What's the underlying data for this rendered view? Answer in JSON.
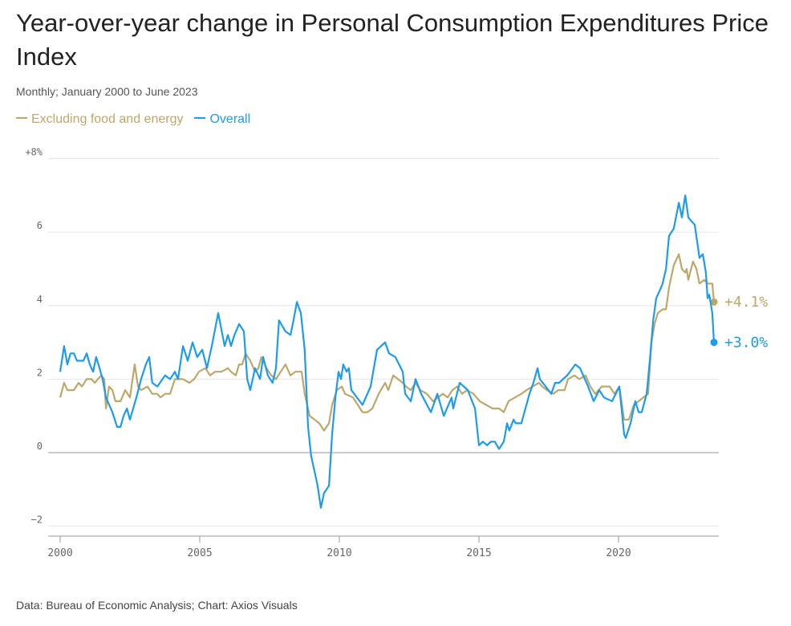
{
  "title": "Year-over-year change in Personal Consumption Expenditures Price Index",
  "subtitle": "Monthly; January 2000 to June 2023",
  "footer": "Data: Bureau of Economic Analysis; Chart: Axios Visuals",
  "colors": {
    "core": "#BBA86A",
    "overall": "#1E9BEA",
    "grid": "#e6e6e6",
    "zero": "#999999"
  },
  "chart_data": {
    "type": "line",
    "title": "Year-over-year change in Personal Consumption Expenditures Price Index",
    "xlabel": "",
    "ylabel": "",
    "xlim": [
      2000,
      2023.5
    ],
    "ylim": [
      -2,
      8
    ],
    "grid": true,
    "legend_placement": "top-left",
    "y_ticks": [
      {
        "v": 8,
        "label": "+8%"
      },
      {
        "v": 6,
        "label": "6"
      },
      {
        "v": 4,
        "label": "4"
      },
      {
        "v": 2,
        "label": "2"
      },
      {
        "v": 0,
        "label": "0"
      },
      {
        "v": -2,
        "label": "−2"
      }
    ],
    "x_ticks": [
      {
        "v": 2000,
        "label": "2000"
      },
      {
        "v": 2005,
        "label": "2005"
      },
      {
        "v": 2010,
        "label": "2010"
      },
      {
        "v": 2015,
        "label": "2015"
      },
      {
        "v": 2020,
        "label": "2020"
      }
    ],
    "series": [
      {
        "name": "Excluding food and energy",
        "key": "core",
        "end_label": "+4.1%",
        "points": [
          [
            2000.0,
            1.5
          ],
          [
            2000.14,
            1.9
          ],
          [
            2000.26,
            1.7
          ],
          [
            2000.49,
            1.7
          ],
          [
            2000.66,
            1.9
          ],
          [
            2000.78,
            1.8
          ],
          [
            2000.95,
            2.0
          ],
          [
            2001.12,
            2.0
          ],
          [
            2001.24,
            1.9
          ],
          [
            2001.35,
            2.0
          ],
          [
            2001.47,
            2.1
          ],
          [
            2001.58,
            2.0
          ],
          [
            2001.64,
            1.2
          ],
          [
            2001.75,
            1.8
          ],
          [
            2001.87,
            1.7
          ],
          [
            2001.98,
            1.4
          ],
          [
            2002.16,
            1.4
          ],
          [
            2002.33,
            1.7
          ],
          [
            2002.5,
            1.5
          ],
          [
            2002.67,
            2.4
          ],
          [
            2002.79,
            1.8
          ],
          [
            2002.9,
            1.7
          ],
          [
            2003.13,
            1.8
          ],
          [
            2003.3,
            1.6
          ],
          [
            2003.48,
            1.6
          ],
          [
            2003.59,
            1.5
          ],
          [
            2003.76,
            1.6
          ],
          [
            2003.94,
            1.6
          ],
          [
            2004.11,
            2.0
          ],
          [
            2004.4,
            2.0
          ],
          [
            2004.63,
            1.9
          ],
          [
            2004.8,
            2.0
          ],
          [
            2004.97,
            2.2
          ],
          [
            2005.2,
            2.3
          ],
          [
            2005.37,
            2.1
          ],
          [
            2005.55,
            2.2
          ],
          [
            2005.78,
            2.2
          ],
          [
            2006.01,
            2.3
          ],
          [
            2006.12,
            2.2
          ],
          [
            2006.29,
            2.1
          ],
          [
            2006.41,
            2.4
          ],
          [
            2006.52,
            2.4
          ],
          [
            2006.64,
            2.7
          ],
          [
            2006.81,
            2.5
          ],
          [
            2006.98,
            2.2
          ],
          [
            2007.1,
            2.3
          ],
          [
            2007.21,
            2.6
          ],
          [
            2007.39,
            2.3
          ],
          [
            2007.56,
            2.1
          ],
          [
            2007.73,
            2.0
          ],
          [
            2007.9,
            2.2
          ],
          [
            2008.07,
            2.4
          ],
          [
            2008.25,
            2.1
          ],
          [
            2008.42,
            2.2
          ],
          [
            2008.65,
            2.2
          ],
          [
            2008.76,
            1.6
          ],
          [
            2008.94,
            1.0
          ],
          [
            2009.11,
            0.9
          ],
          [
            2009.28,
            0.8
          ],
          [
            2009.45,
            0.6
          ],
          [
            2009.63,
            0.8
          ],
          [
            2009.74,
            1.3
          ],
          [
            2009.91,
            1.7
          ],
          [
            2010.09,
            1.8
          ],
          [
            2010.2,
            1.6
          ],
          [
            2010.49,
            1.5
          ],
          [
            2010.66,
            1.3
          ],
          [
            2010.83,
            1.1
          ],
          [
            2011.01,
            1.1
          ],
          [
            2011.18,
            1.2
          ],
          [
            2011.41,
            1.6
          ],
          [
            2011.64,
            1.9
          ],
          [
            2011.75,
            1.7
          ],
          [
            2011.93,
            2.1
          ],
          [
            2012.1,
            2.0
          ],
          [
            2012.27,
            1.9
          ],
          [
            2012.39,
            1.8
          ],
          [
            2012.56,
            1.7
          ],
          [
            2012.73,
            1.9
          ],
          [
            2012.9,
            1.7
          ],
          [
            2013.13,
            1.6
          ],
          [
            2013.36,
            1.4
          ],
          [
            2013.53,
            1.5
          ],
          [
            2013.71,
            1.6
          ],
          [
            2013.88,
            1.5
          ],
          [
            2014.05,
            1.7
          ],
          [
            2014.22,
            1.8
          ],
          [
            2014.4,
            1.6
          ],
          [
            2014.57,
            1.7
          ],
          [
            2014.8,
            1.6
          ],
          [
            2015.03,
            1.4
          ],
          [
            2015.26,
            1.3
          ],
          [
            2015.49,
            1.2
          ],
          [
            2015.72,
            1.2
          ],
          [
            2015.89,
            1.1
          ],
          [
            2016.06,
            1.4
          ],
          [
            2016.29,
            1.5
          ],
          [
            2016.52,
            1.6
          ],
          [
            2016.7,
            1.7
          ],
          [
            2016.92,
            1.8
          ],
          [
            2017.15,
            1.9
          ],
          [
            2017.27,
            1.8
          ],
          [
            2017.44,
            1.7
          ],
          [
            2017.67,
            1.6
          ],
          [
            2017.84,
            1.7
          ],
          [
            2018.07,
            1.7
          ],
          [
            2018.19,
            2.0
          ],
          [
            2018.42,
            2.1
          ],
          [
            2018.59,
            2.0
          ],
          [
            2018.82,
            2.1
          ],
          [
            2018.99,
            1.8
          ],
          [
            2019.17,
            1.6
          ],
          [
            2019.4,
            1.8
          ],
          [
            2019.68,
            1.8
          ],
          [
            2019.86,
            1.6
          ],
          [
            2020.03,
            1.8
          ],
          [
            2020.2,
            0.9
          ],
          [
            2020.37,
            0.9
          ],
          [
            2020.55,
            1.3
          ],
          [
            2020.72,
            1.4
          ],
          [
            2020.89,
            1.5
          ],
          [
            2021.06,
            1.6
          ],
          [
            2021.18,
            3.0
          ],
          [
            2021.29,
            3.5
          ],
          [
            2021.41,
            3.8
          ],
          [
            2021.58,
            3.9
          ],
          [
            2021.7,
            3.9
          ],
          [
            2021.81,
            4.5
          ],
          [
            2021.98,
            5.1
          ],
          [
            2022.16,
            5.4
          ],
          [
            2022.27,
            5.0
          ],
          [
            2022.39,
            4.9
          ],
          [
            2022.44,
            5.0
          ],
          [
            2022.5,
            4.7
          ],
          [
            2022.67,
            5.2
          ],
          [
            2022.79,
            5.0
          ],
          [
            2022.9,
            4.6
          ],
          [
            2023.07,
            4.7
          ],
          [
            2023.19,
            4.6
          ],
          [
            2023.36,
            4.6
          ],
          [
            2023.42,
            4.1
          ]
        ]
      },
      {
        "name": "Overall",
        "key": "overall",
        "end_label": "+3.0%",
        "points": [
          [
            2000.0,
            2.2
          ],
          [
            2000.14,
            2.9
          ],
          [
            2000.26,
            2.4
          ],
          [
            2000.37,
            2.7
          ],
          [
            2000.49,
            2.7
          ],
          [
            2000.6,
            2.5
          ],
          [
            2000.83,
            2.5
          ],
          [
            2000.95,
            2.7
          ],
          [
            2001.06,
            2.4
          ],
          [
            2001.18,
            2.2
          ],
          [
            2001.29,
            2.6
          ],
          [
            2001.41,
            2.3
          ],
          [
            2001.52,
            2.0
          ],
          [
            2001.64,
            1.5
          ],
          [
            2001.87,
            1.1
          ],
          [
            2002.04,
            0.7
          ],
          [
            2002.16,
            0.7
          ],
          [
            2002.27,
            1.0
          ],
          [
            2002.39,
            1.2
          ],
          [
            2002.5,
            0.9
          ],
          [
            2002.73,
            1.5
          ],
          [
            2002.9,
            2.0
          ],
          [
            2003.07,
            2.4
          ],
          [
            2003.19,
            2.6
          ],
          [
            2003.3,
            1.9
          ],
          [
            2003.48,
            1.8
          ],
          [
            2003.76,
            2.1
          ],
          [
            2003.94,
            2.0
          ],
          [
            2004.11,
            2.2
          ],
          [
            2004.22,
            2.0
          ],
          [
            2004.4,
            2.9
          ],
          [
            2004.57,
            2.5
          ],
          [
            2004.74,
            3.0
          ],
          [
            2004.91,
            2.6
          ],
          [
            2005.09,
            2.8
          ],
          [
            2005.26,
            2.3
          ],
          [
            2005.43,
            2.9
          ],
          [
            2005.66,
            3.8
          ],
          [
            2005.89,
            2.9
          ],
          [
            2006.01,
            3.2
          ],
          [
            2006.12,
            2.9
          ],
          [
            2006.24,
            3.2
          ],
          [
            2006.41,
            3.5
          ],
          [
            2006.58,
            3.3
          ],
          [
            2006.7,
            2.0
          ],
          [
            2006.81,
            1.7
          ],
          [
            2006.98,
            2.3
          ],
          [
            2007.16,
            2.0
          ],
          [
            2007.27,
            2.6
          ],
          [
            2007.44,
            2.1
          ],
          [
            2007.61,
            1.9
          ],
          [
            2007.73,
            2.3
          ],
          [
            2007.84,
            3.6
          ],
          [
            2008.07,
            3.3
          ],
          [
            2008.25,
            3.2
          ],
          [
            2008.36,
            3.6
          ],
          [
            2008.48,
            4.1
          ],
          [
            2008.62,
            3.8
          ],
          [
            2008.76,
            2.8
          ],
          [
            2008.88,
            0.7
          ],
          [
            2008.99,
            -0.1
          ],
          [
            2009.11,
            -0.5
          ],
          [
            2009.22,
            -0.9
          ],
          [
            2009.34,
            -1.5
          ],
          [
            2009.45,
            -1.1
          ],
          [
            2009.63,
            -0.9
          ],
          [
            2009.74,
            0.5
          ],
          [
            2009.86,
            1.5
          ],
          [
            2009.97,
            2.2
          ],
          [
            2010.06,
            2.0
          ],
          [
            2010.14,
            2.4
          ],
          [
            2010.26,
            2.2
          ],
          [
            2010.34,
            2.3
          ],
          [
            2010.43,
            1.7
          ],
          [
            2010.83,
            1.3
          ],
          [
            2011.12,
            1.8
          ],
          [
            2011.35,
            2.8
          ],
          [
            2011.64,
            3.0
          ],
          [
            2011.78,
            2.7
          ],
          [
            2012.01,
            2.6
          ],
          [
            2012.27,
            2.2
          ],
          [
            2012.36,
            1.6
          ],
          [
            2012.56,
            1.4
          ],
          [
            2012.73,
            2.0
          ],
          [
            2012.93,
            1.6
          ],
          [
            2013.28,
            1.1
          ],
          [
            2013.51,
            1.6
          ],
          [
            2013.74,
            1.0
          ],
          [
            2014.02,
            1.5
          ],
          [
            2014.08,
            1.2
          ],
          [
            2014.31,
            1.9
          ],
          [
            2014.6,
            1.7
          ],
          [
            2014.86,
            1.2
          ],
          [
            2015.0,
            0.2
          ],
          [
            2015.14,
            0.3
          ],
          [
            2015.29,
            0.2
          ],
          [
            2015.43,
            0.3
          ],
          [
            2015.57,
            0.3
          ],
          [
            2015.72,
            0.1
          ],
          [
            2015.89,
            0.3
          ],
          [
            2016.01,
            0.8
          ],
          [
            2016.09,
            0.6
          ],
          [
            2016.24,
            0.9
          ],
          [
            2016.32,
            0.8
          ],
          [
            2016.52,
            0.8
          ],
          [
            2016.81,
            1.6
          ],
          [
            2016.95,
            1.9
          ],
          [
            2017.1,
            2.3
          ],
          [
            2017.18,
            2.0
          ],
          [
            2017.39,
            1.8
          ],
          [
            2017.59,
            1.6
          ],
          [
            2017.73,
            1.9
          ],
          [
            2017.87,
            1.9
          ],
          [
            2018.16,
            2.1
          ],
          [
            2018.45,
            2.4
          ],
          [
            2018.62,
            2.3
          ],
          [
            2018.91,
            1.8
          ],
          [
            2019.11,
            1.4
          ],
          [
            2019.31,
            1.7
          ],
          [
            2019.48,
            1.5
          ],
          [
            2019.77,
            1.4
          ],
          [
            2020.03,
            1.8
          ],
          [
            2020.2,
            0.5
          ],
          [
            2020.26,
            0.4
          ],
          [
            2020.43,
            0.8
          ],
          [
            2020.6,
            1.4
          ],
          [
            2020.72,
            1.1
          ],
          [
            2020.83,
            1.1
          ],
          [
            2021.01,
            1.6
          ],
          [
            2021.12,
            2.5
          ],
          [
            2021.24,
            3.6
          ],
          [
            2021.35,
            4.2
          ],
          [
            2021.47,
            4.4
          ],
          [
            2021.58,
            4.6
          ],
          [
            2021.7,
            5.0
          ],
          [
            2021.81,
            5.9
          ],
          [
            2021.98,
            6.1
          ],
          [
            2022.16,
            6.8
          ],
          [
            2022.27,
            6.4
          ],
          [
            2022.39,
            7.0
          ],
          [
            2022.5,
            6.4
          ],
          [
            2022.61,
            6.3
          ],
          [
            2022.73,
            6.2
          ],
          [
            2022.9,
            5.3
          ],
          [
            2023.02,
            5.4
          ],
          [
            2023.13,
            4.9
          ],
          [
            2023.19,
            4.2
          ],
          [
            2023.25,
            4.3
          ],
          [
            2023.36,
            3.8
          ],
          [
            2023.42,
            3.0
          ]
        ]
      }
    ]
  }
}
